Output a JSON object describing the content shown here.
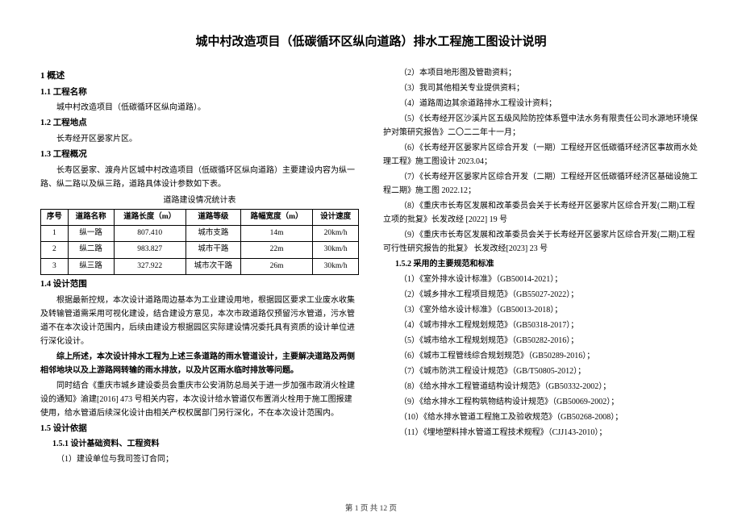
{
  "main_title": "城中村改造项目（低碳循环区纵向道路）排水工程施工图设计说明",
  "left": {
    "s1": "1 概述",
    "s1_1": "1.1 工程名称",
    "p1_1": "城中村改造项目（低碳循环区纵向道路）。",
    "s1_2": "1.2 工程地点",
    "p1_2": "长寿经开区晏家片区。",
    "s1_3": "1.3 工程概况",
    "p1_3": "长寿区晏家、渡舟片区城中村改造项目（低碳循环区纵向道路）主要建设内容为纵一路、纵二路以及纵三路，道路具体设计参数如下表。",
    "table_caption": "道路建设情况统计表",
    "table": {
      "headers": [
        "序号",
        "道路名称",
        "道路长度（m）",
        "道路等级",
        "路幅宽度（m）",
        "设计速度"
      ],
      "rows": [
        [
          "1",
          "纵一路",
          "807.410",
          "城市支路",
          "14m",
          "20km/h"
        ],
        [
          "2",
          "纵二路",
          "983.827",
          "城市干路",
          "22m",
          "30km/h"
        ],
        [
          "3",
          "纵三路",
          "327.922",
          "城市次干路",
          "26m",
          "30km/h"
        ]
      ]
    },
    "s1_4": "1.4 设计范围",
    "p1_4a": "根据最新控规，本次设计道路周边基本为工业建设用地，根据园区要求工业废水收集及转输管道需采用可视化建设，结合建设方意见，本次市政道路仅预留污水管道，污水管道不在本次设计范围内，后续由建设方根据园区实际建设情况委托具有资质的设计单位进行深化设计。",
    "p1_4b": "综上所述，本次设计排水工程为上述三条道路的雨水管道设计，主要解决道路及两侧相邻地块以及上游路网转输的雨水排放，以及片区雨水临时排放等问题。",
    "p1_4c": "同时结合《重庆市城乡建设委员会重庆市公安消防总局关于进一步加强市政消火栓建设的通知》渝建[2016] 473 号相关内容，本次设计给水管道仅布置消火栓用于施工图报建使用，给水管道后续深化设计由相关产权权属部门另行深化，不在本次设计范围内。",
    "s1_5": "1.5 设计依据",
    "s1_5_1": "1.5.1 设计基础资料、工程资料",
    "l1_5_1_1": "（1）建设单位与我司签订合同；"
  },
  "right": {
    "l2": "（2）本项目地形图及管勘资料；",
    "l3": "（3）我司其他相关专业提供资料；",
    "l4": "（4）道路周边其余道路排水工程设计资料；",
    "l5": "（5）《长寿经开区沙溪片区五级风险防控体系暨中法水务有限责任公司水源地环境保护对策研究报告》二〇二二年十一月；",
    "l6": "（6）《长寿经开区晏家片区综合开发（一期）工程经开区低碳循环经济区事故雨水处理工程》施工图设计 2023.04；",
    "l7": "（7）《长寿经开区晏家片区综合开发（二期）工程经开区低碳循环经济区基础设施工程二期》施工图 2022.12；",
    "l8": "（8）《重庆市长寿区发展和改革委员会关于长寿经开区晏家片区综合开发(二期)工程立项的批复》长发改经 [2022] 19 号",
    "l9": "（9）《重庆市长寿区发展和改革委员会关于长寿经开区晏家片区综合开发(二期)工程可行性研究报告的批复》 长发改经[2023] 23 号",
    "s1_5_2": "1.5.2 采用的主要规范和标准",
    "std1": "（1）《室外排水设计标准》（GB50014-2021）；",
    "std2": "（2）《城乡排水工程项目规范》（GB55027-2022）；",
    "std3": "（3）《室外给水设计标准》（GB50013-2018）；",
    "std4": "（4）《城市排水工程规划规范》（GB50318-2017）；",
    "std5": "（5）《城市给水工程规划规范》（GB50282-2016）；",
    "std6": "（6）《城市工程管线综合规划规范》（GB50289-2016）；",
    "std7": "（7）《城市防洪工程设计规范》（GB/T50805-2012）；",
    "std8": "（8）《给水排水工程管道结构设计规范》（GB50332-2002）；",
    "std9": "（9）《给水排水工程构筑物结构设计规范》（GB50069-2002）；",
    "std10": "（10）《给水排水管道工程施工及验收规范》（GB50268-2008）；",
    "std11": "（11）《埋地塑料排水管道工程技术规程》（CJJ143-2010）；"
  },
  "footer": {
    "page": "第 1 页 共 12 页"
  }
}
